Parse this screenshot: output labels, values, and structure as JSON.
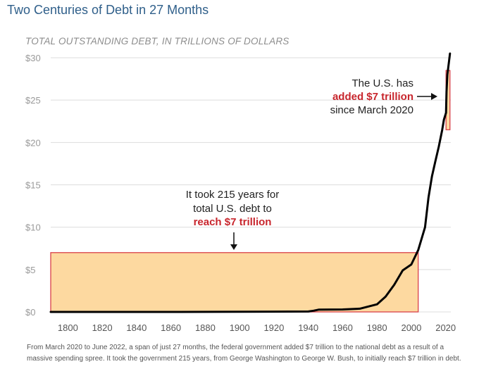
{
  "header": {
    "title": "Two Centuries of Debt in 27 Months",
    "subtitle": "TOTAL OUTSTANDING DEBT, IN TRILLIONS OF DOLLARS"
  },
  "footnote": "From March 2020 to June 2022, a span of just 27 months, the federal government added $7 trillion to the national debt as a result of a massive spending spree. It took the government 215 years, from George Washington to George W. Bush, to initially reach $7 trillion in debt.",
  "colors": {
    "line": "#000000",
    "highlight_fill": "#fdd9a0",
    "highlight_border": "#d9414a",
    "accent_red": "#c8262d",
    "grid": "#dddddd"
  },
  "chart_data": {
    "type": "line",
    "title": "Two Centuries of Debt in 27 Months",
    "ylabel": "TOTAL OUTSTANDING DEBT, IN TRILLIONS OF DOLLARS",
    "xlim": [
      1790,
      2023
    ],
    "ylim": [
      0,
      30
    ],
    "x_ticks": [
      1800,
      1820,
      1840,
      1860,
      1880,
      1900,
      1920,
      1940,
      1960,
      1980,
      2000,
      2020
    ],
    "y_ticks": [
      0,
      5,
      10,
      15,
      20,
      25,
      30
    ],
    "y_tick_labels": [
      "$0",
      "$5",
      "$10",
      "$15",
      "$20",
      "$25",
      "$30"
    ],
    "grid": true,
    "series": [
      {
        "x": [
          1790,
          1860,
          1918,
          1940,
          1943,
          1946,
          1960,
          1970,
          1980,
          1985,
          1990,
          1995,
          2000,
          2004,
          2008,
          2010,
          2012,
          2014,
          2016,
          2018,
          2019,
          2020.2,
          2020.5,
          2021,
          2022.5
        ],
        "y": [
          0,
          0,
          0.03,
          0.05,
          0.14,
          0.27,
          0.29,
          0.38,
          0.9,
          1.8,
          3.2,
          4.9,
          5.6,
          7.3,
          10.0,
          13.5,
          16.0,
          17.8,
          19.5,
          21.5,
          22.7,
          23.5,
          26.0,
          28.0,
          30.5
        ]
      }
    ],
    "highlights": [
      {
        "x_start": 1790,
        "x_end": 2004,
        "y_start": 0,
        "y_end": 7
      },
      {
        "x_start": 2020.2,
        "x_end": 2022.5,
        "y_start": 21.5,
        "y_end": 28.5
      }
    ],
    "annotations": [
      {
        "lines": [
          "It took 215 years for",
          "total U.S. debt to"
        ],
        "highlight": "reach $7 trillion"
      },
      {
        "lines": [
          "The U.S. has"
        ],
        "highlight": "added $7 trillion",
        "tail": "since March 2020"
      }
    ]
  }
}
